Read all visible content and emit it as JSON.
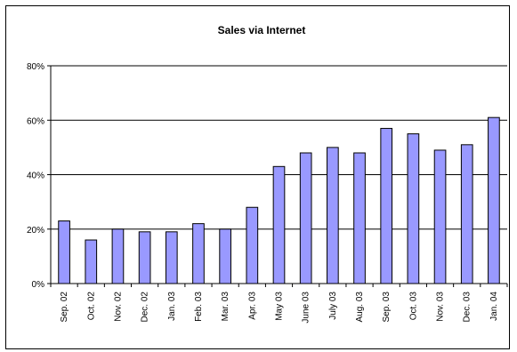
{
  "chart_data": {
    "type": "bar",
    "title": "Sales via Internet",
    "xlabel": "",
    "ylabel": "",
    "categories": [
      "Sep. 02",
      "Oct. 02",
      "Nov. 02",
      "Dec. 02",
      "Jan. 03",
      "Feb. 03",
      "Mar. 03",
      "Apr. 03",
      "May 03",
      "June 03",
      "July 03",
      "Aug. 03",
      "Sep. 03",
      "Oct. 03",
      "Nov. 03",
      "Dec. 03",
      "Jan. 04"
    ],
    "values": [
      23,
      16,
      20,
      19,
      19,
      22,
      20,
      28,
      43,
      48,
      50,
      48,
      57,
      55,
      49,
      51,
      61
    ],
    "value_unit": "%",
    "ylim": [
      0,
      80
    ],
    "yticks": [
      0,
      20,
      40,
      60,
      80
    ],
    "ytick_labels": [
      "0%",
      "20%",
      "40%",
      "60%",
      "80%"
    ],
    "grid": true,
    "legend": "none",
    "colors": {
      "bar_fill": "#9999FF",
      "bar_stroke": "#000000",
      "grid": "#000000"
    }
  }
}
